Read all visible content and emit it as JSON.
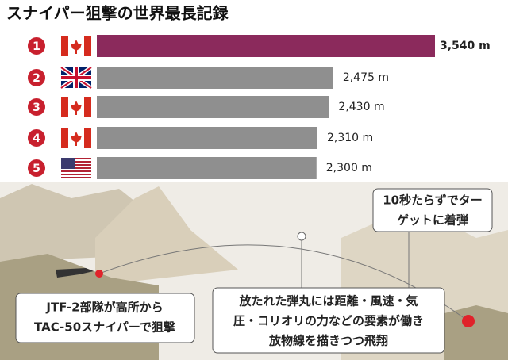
{
  "chart_data": {
    "type": "bar",
    "orientation": "horizontal",
    "title": "スナイパー狙撃の世界最長記録",
    "categories": [
      "1",
      "2",
      "3",
      "4",
      "5"
    ],
    "values": [
      3540,
      2475,
      2430,
      2310,
      2300
    ],
    "value_labels": [
      "3,540 m",
      "2,475 m",
      "2,430 m",
      "2,310 m",
      "2,300 m"
    ],
    "colors": [
      "#8b2a5c",
      "#8f8f8f",
      "#8f8f8f",
      "#8f8f8f",
      "#8f8f8f"
    ],
    "annotations": [
      [
        "10秒たらずでター",
        "ゲットに着弾"
      ],
      [
        "JTF-2部隊が高所から",
        "TAC-50スナイパーで狙撃"
      ],
      [
        "放たれた弾丸には距離・風速・気",
        "圧・コリオリの力などの要素が働き",
        "放物線を描きつつ飛翔"
      ]
    ]
  }
}
